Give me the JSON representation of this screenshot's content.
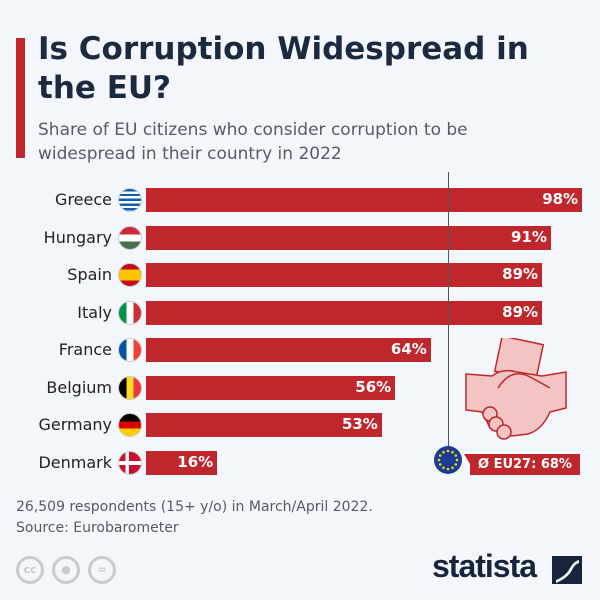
{
  "title": "Is Corruption Widespread in the EU?",
  "subtitle": "Share of EU citizens who consider corruption to be widespread in their country in 2022",
  "chart_data": {
    "type": "bar",
    "orientation": "horizontal",
    "title": "Is Corruption Widespread in the EU?",
    "categories": [
      "Greece",
      "Hungary",
      "Spain",
      "Italy",
      "France",
      "Belgium",
      "Germany",
      "Denmark"
    ],
    "values": [
      98,
      91,
      89,
      89,
      64,
      56,
      53,
      16
    ],
    "value_labels": [
      "98%",
      "91%",
      "89%",
      "89%",
      "64%",
      "56%",
      "53%",
      "16%"
    ],
    "unit": "%",
    "xlim": [
      0,
      100
    ],
    "grid": false,
    "reference_line": {
      "value": 68,
      "label": "Ø EU27: 68%"
    },
    "bar_color": "#c0272d"
  },
  "note": "26,509 respondents (15+ y/o) in March/April 2022.",
  "source": "Source: Eurobarometer",
  "license_icons": [
    "cc",
    "by",
    "nd"
  ],
  "cc_label": "cc",
  "brand": "statista"
}
